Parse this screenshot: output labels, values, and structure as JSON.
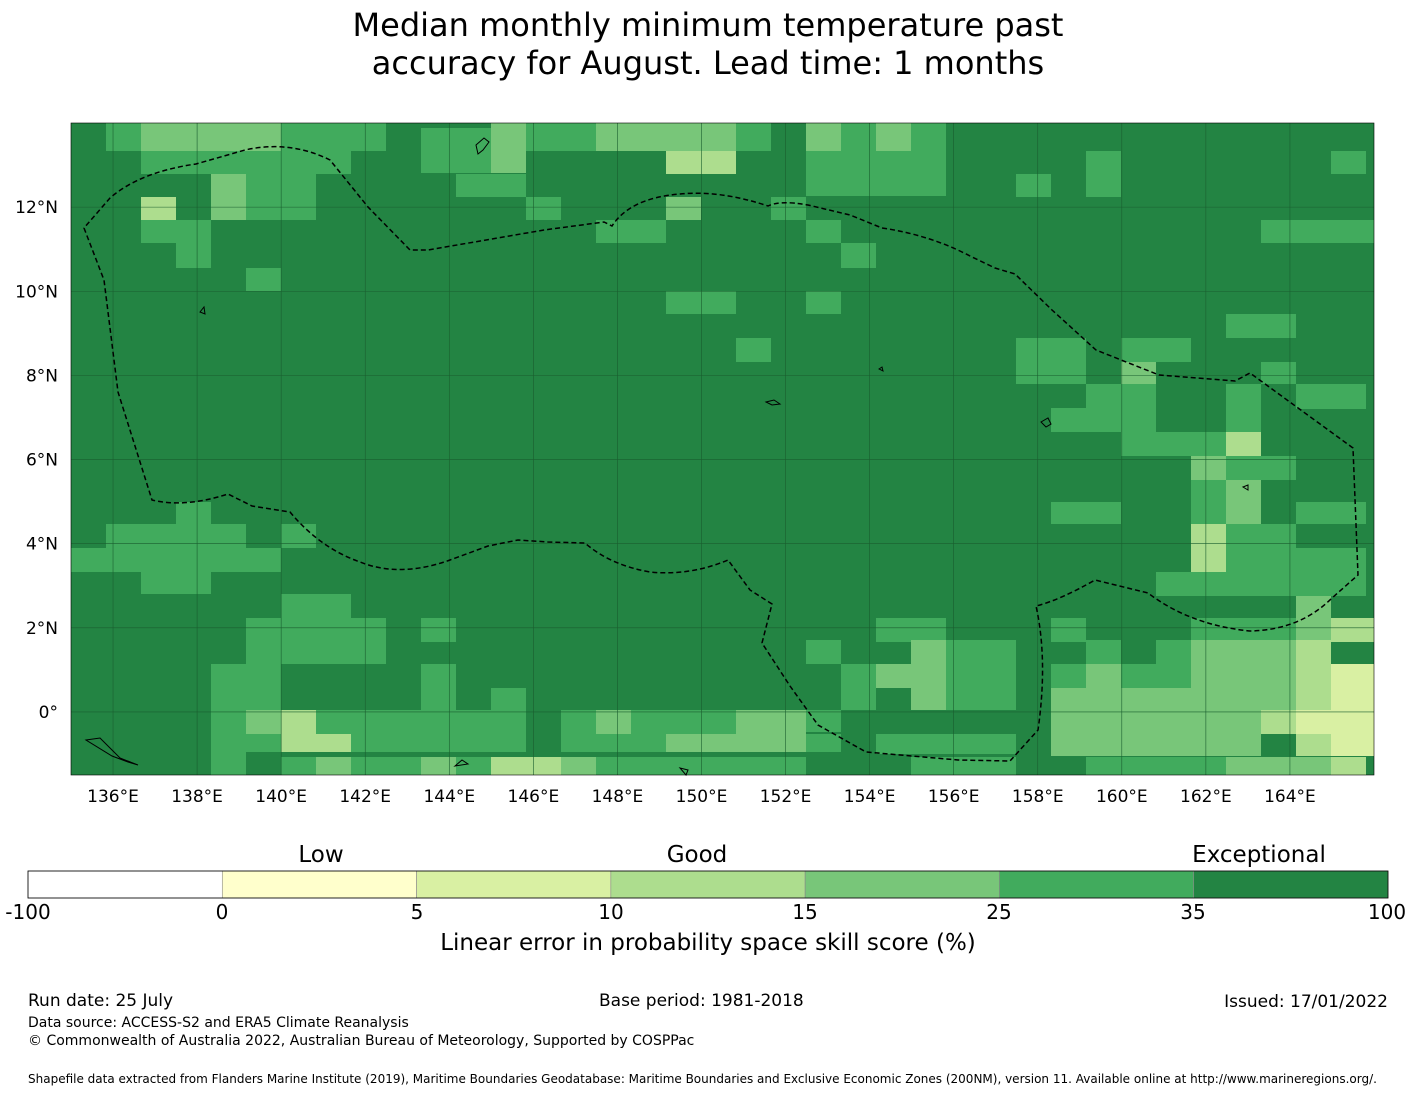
{
  "title": {
    "line1": "Median monthly minimum temperature past",
    "line2": "accuracy for August. Lead time: 1 months"
  },
  "map": {
    "lon_labels": [
      "136°E",
      "138°E",
      "140°E",
      "142°E",
      "144°E",
      "146°E",
      "148°E",
      "150°E",
      "152°E",
      "154°E",
      "156°E",
      "158°E",
      "160°E",
      "162°E",
      "164°E"
    ],
    "lat_labels": [
      "12°N",
      "10°N",
      "8°N",
      "6°N",
      "4°N",
      "2°N",
      "0°"
    ],
    "lon_values": [
      136,
      138,
      140,
      142,
      144,
      146,
      148,
      150,
      152,
      154,
      156,
      158,
      160,
      162,
      164
    ],
    "lat_values": [
      12,
      10,
      8,
      6,
      4,
      2,
      0
    ],
    "extent": {
      "lon_min": 135,
      "lon_max": 166,
      "lat_min": -1.5,
      "lat_max": 14
    },
    "base_color": "#238443",
    "boundary_style": "dashed",
    "region_colors": {
      "exceptional": "#238443",
      "very_good": "#41ab5d",
      "good": "#78c679",
      "fair": "#addd8e",
      "low": "#d9f0a3"
    }
  },
  "colorbar": {
    "category_low": "Low",
    "category_good": "Good",
    "category_exceptional": "Exceptional",
    "ticks": [
      "-100",
      "0",
      "5",
      "10",
      "15",
      "25",
      "35",
      "100"
    ],
    "colors": [
      "#ffffff",
      "#ffffcc",
      "#d9f0a3",
      "#addd8e",
      "#78c679",
      "#41ab5d",
      "#238443"
    ],
    "label": "Linear error in probability space skill score (%)"
  },
  "footer": {
    "run_date": "Run date: 25 July",
    "base_period": "Base period: 1981-2018",
    "issued": "Issued: 17/01/2022",
    "data_source": "Data source: ACCESS-S2 and ERA5 Climate Reanalysis",
    "copyright": "© Commonwealth of Australia 2022, Australian Bureau of Meteorology, Supported by COSPPac",
    "shapefile": "Shapefile data extracted from Flanders Marine Institute (2019), Maritime Boundaries Geodatabase: Maritime Boundaries and Exclusive Economic Zones (200NM), version 11. Available online at http://www.marineregions.org/."
  }
}
